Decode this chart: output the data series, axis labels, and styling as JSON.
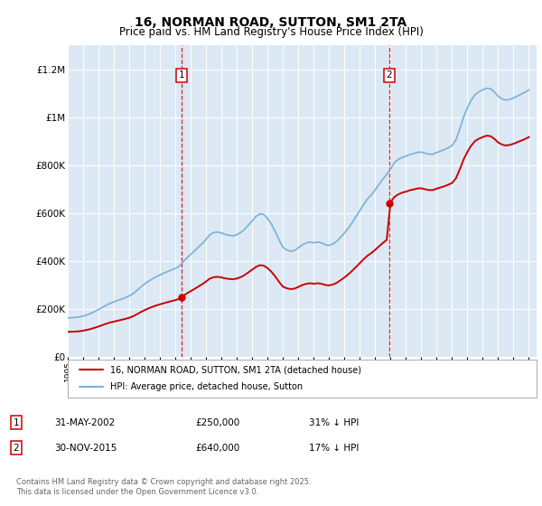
{
  "title": "16, NORMAN ROAD, SUTTON, SM1 2TA",
  "subtitle": "Price paid vs. HM Land Registry's House Price Index (HPI)",
  "title_fontsize": 10,
  "subtitle_fontsize": 8.5,
  "yticks": [
    0,
    200000,
    400000,
    600000,
    800000,
    1000000,
    1200000
  ],
  "ytick_labels": [
    "£0",
    "£200K",
    "£400K",
    "£600K",
    "£800K",
    "£1M",
    "£1.2M"
  ],
  "ylim": [
    0,
    1300000
  ],
  "xmin": 1995.0,
  "xmax": 2025.5,
  "plot_bg_color": "#dce9f5",
  "fig_bg_color": "#ffffff",
  "grid_color": "#ffffff",
  "red_line_color": "#cc0000",
  "blue_line_color": "#7ab0d4",
  "transaction1_x": 2002.42,
  "transaction1_y": 250000,
  "transaction1_label": "31-MAY-2002",
  "transaction1_price": "£250,000",
  "transaction1_note": "31% ↓ HPI",
  "transaction2_x": 2015.92,
  "transaction2_y": 640000,
  "transaction2_label": "30-NOV-2015",
  "transaction2_price": "£640,000",
  "transaction2_note": "17% ↓ HPI",
  "legend_line1": "16, NORMAN ROAD, SUTTON, SM1 2TA (detached house)",
  "legend_line2": "HPI: Average price, detached house, Sutton",
  "footer": "Contains HM Land Registry data © Crown copyright and database right 2025.\nThis data is licensed under the Open Government Licence v3.0.",
  "hpi_x": [
    1995.0,
    1995.25,
    1995.5,
    1995.75,
    1996.0,
    1996.25,
    1996.5,
    1996.75,
    1997.0,
    1997.25,
    1997.5,
    1997.75,
    1998.0,
    1998.25,
    1998.5,
    1998.75,
    1999.0,
    1999.25,
    1999.5,
    1999.75,
    2000.0,
    2000.25,
    2000.5,
    2000.75,
    2001.0,
    2001.25,
    2001.5,
    2001.75,
    2002.0,
    2002.25,
    2002.5,
    2002.75,
    2003.0,
    2003.25,
    2003.5,
    2003.75,
    2004.0,
    2004.25,
    2004.5,
    2004.75,
    2005.0,
    2005.25,
    2005.5,
    2005.75,
    2006.0,
    2006.25,
    2006.5,
    2006.75,
    2007.0,
    2007.25,
    2007.5,
    2007.75,
    2008.0,
    2008.25,
    2008.5,
    2008.75,
    2009.0,
    2009.25,
    2009.5,
    2009.75,
    2010.0,
    2010.25,
    2010.5,
    2010.75,
    2011.0,
    2011.25,
    2011.5,
    2011.75,
    2012.0,
    2012.25,
    2012.5,
    2012.75,
    2013.0,
    2013.25,
    2013.5,
    2013.75,
    2014.0,
    2014.25,
    2014.5,
    2014.75,
    2015.0,
    2015.25,
    2015.5,
    2015.75,
    2016.0,
    2016.25,
    2016.5,
    2016.75,
    2017.0,
    2017.25,
    2017.5,
    2017.75,
    2018.0,
    2018.25,
    2018.5,
    2018.75,
    2019.0,
    2019.25,
    2019.5,
    2019.75,
    2020.0,
    2020.25,
    2020.5,
    2020.75,
    2021.0,
    2021.25,
    2021.5,
    2021.75,
    2022.0,
    2022.25,
    2022.5,
    2022.75,
    2023.0,
    2023.25,
    2023.5,
    2023.75,
    2024.0,
    2024.25,
    2024.5,
    2024.75,
    2025.0
  ],
  "hpi_y": [
    162000,
    163000,
    164000,
    166000,
    170000,
    175000,
    181000,
    189000,
    197000,
    206000,
    215000,
    223000,
    229000,
    235000,
    241000,
    247000,
    254000,
    264000,
    277000,
    291000,
    304000,
    315000,
    325000,
    334000,
    342000,
    349000,
    356000,
    363000,
    369000,
    378000,
    396000,
    413000,
    428000,
    442000,
    458000,
    473000,
    491000,
    510000,
    519000,
    521000,
    517000,
    511000,
    507000,
    505000,
    510000,
    519000,
    532000,
    550000,
    568000,
    586000,
    597000,
    594000,
    578000,
    554000,
    523000,
    488000,
    457000,
    446000,
    441000,
    444000,
    455000,
    467000,
    475000,
    479000,
    476000,
    479000,
    476000,
    468000,
    465000,
    471000,
    482000,
    499000,
    517000,
    537000,
    560000,
    585000,
    610000,
    636000,
    659000,
    676000,
    697000,
    720000,
    742000,
    762000,
    785000,
    811000,
    824000,
    833000,
    838000,
    845000,
    849000,
    854000,
    855000,
    850000,
    846000,
    846000,
    853000,
    859000,
    865000,
    873000,
    882000,
    905000,
    950000,
    1001000,
    1040000,
    1072000,
    1095000,
    1107000,
    1115000,
    1122000,
    1120000,
    1106000,
    1088000,
    1077000,
    1072000,
    1075000,
    1081000,
    1089000,
    1097000,
    1105000,
    1115000
  ]
}
